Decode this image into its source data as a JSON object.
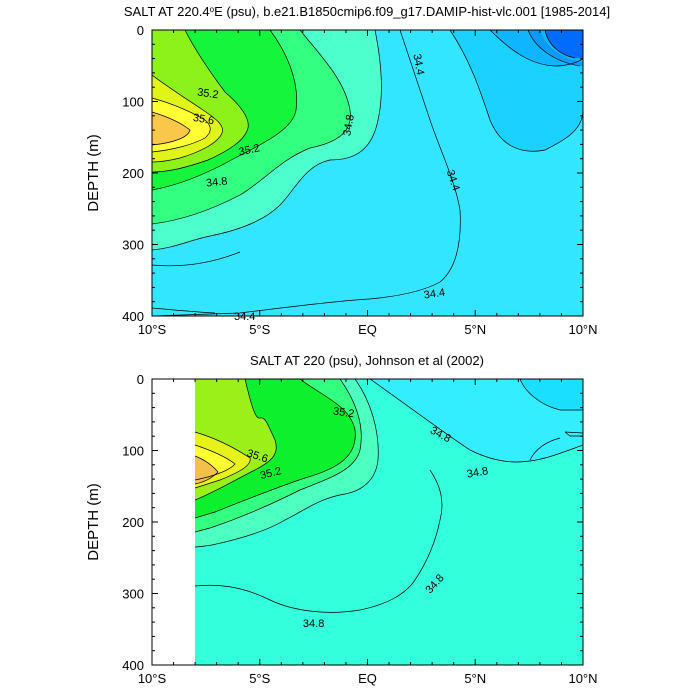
{
  "chart_data": [
    {
      "type": "heatmap",
      "subtype": "filled-contour",
      "title": "SALT AT 220.4°E (psu), b.e21.B1850cmip6.f09_g17.DAMIP-hist-vlc.001 [1985-2014]",
      "title_main": "SALT AT 220.4",
      "title_degree": "o",
      "title_rest": "E (psu), b.e21.B1850cmip6.f09_g17.DAMIP-hist-vlc.001 [1985-2014]",
      "ylabel": "DEPTH (m)",
      "xlabel": "",
      "xlim": [
        -10,
        10
      ],
      "ylim": [
        400,
        0
      ],
      "x_ticks": [
        {
          "value": -10,
          "label": "10°S"
        },
        {
          "value": -5,
          "label": "5°S"
        },
        {
          "value": 0,
          "label": "EQ"
        },
        {
          "value": 5,
          "label": "5°N"
        },
        {
          "value": 10,
          "label": "10°N"
        }
      ],
      "y_ticks": [
        0,
        100,
        200,
        300,
        400
      ],
      "contour_levels": [
        34.0,
        34.2,
        34.4,
        34.6,
        34.8,
        35.0,
        35.2,
        35.4,
        35.6,
        35.8
      ],
      "contour_labels": [
        {
          "value": "35.2",
          "lon": -7.4,
          "depth": 88,
          "rot": 8
        },
        {
          "value": "35.6",
          "lon": -7.6,
          "depth": 124,
          "rot": 10
        },
        {
          "value": "35.2",
          "lon": -5.5,
          "depth": 167,
          "rot": -12
        },
        {
          "value": "34.8",
          "lon": -7.0,
          "depth": 212,
          "rot": -6
        },
        {
          "value": "34.8",
          "lon": -0.9,
          "depth": 133,
          "rot": -80
        },
        {
          "value": "34.4",
          "lon": 2.4,
          "depth": 48,
          "rot": 80
        },
        {
          "value": "34.4",
          "lon": 4.0,
          "depth": 210,
          "rot": 72
        },
        {
          "value": "34.4",
          "lon": 3.1,
          "depth": 368,
          "rot": -8
        },
        {
          "value": "34.4",
          "lon": -5.7,
          "depth": 400,
          "rot": 0
        }
      ]
    },
    {
      "type": "heatmap",
      "subtype": "filled-contour",
      "title": "SALT AT 220 (psu), Johnson et al (2002)",
      "ylabel": "DEPTH (m)",
      "xlabel": "",
      "xlim": [
        -10,
        10
      ],
      "ylim": [
        400,
        0
      ],
      "data_xlim": [
        -8,
        10
      ],
      "x_ticks": [
        {
          "value": -10,
          "label": "10°S"
        },
        {
          "value": -5,
          "label": "5°S"
        },
        {
          "value": 0,
          "label": "EQ"
        },
        {
          "value": 5,
          "label": "5°N"
        },
        {
          "value": 10,
          "label": "10°N"
        }
      ],
      "y_ticks": [
        0,
        100,
        200,
        300,
        400
      ],
      "contour_levels": [
        34.4,
        34.6,
        34.8,
        35.0,
        35.2,
        35.4,
        35.6,
        35.8
      ],
      "contour_labels": [
        {
          "value": "35.2",
          "lon": -1.1,
          "depth": 46,
          "rot": 8
        },
        {
          "value": "34.8",
          "lon": 3.4,
          "depth": 77,
          "rot": 28
        },
        {
          "value": "34.8",
          "lon": 5.1,
          "depth": 130,
          "rot": -10
        },
        {
          "value": "35.6",
          "lon": -5.1,
          "depth": 107,
          "rot": 18
        },
        {
          "value": "35.2",
          "lon": -4.5,
          "depth": 131,
          "rot": -14
        },
        {
          "value": "34.8",
          "lon": 3.1,
          "depth": 286,
          "rot": -48
        },
        {
          "value": "34.8",
          "lon": -2.5,
          "depth": 341,
          "rot": 0
        }
      ]
    }
  ]
}
